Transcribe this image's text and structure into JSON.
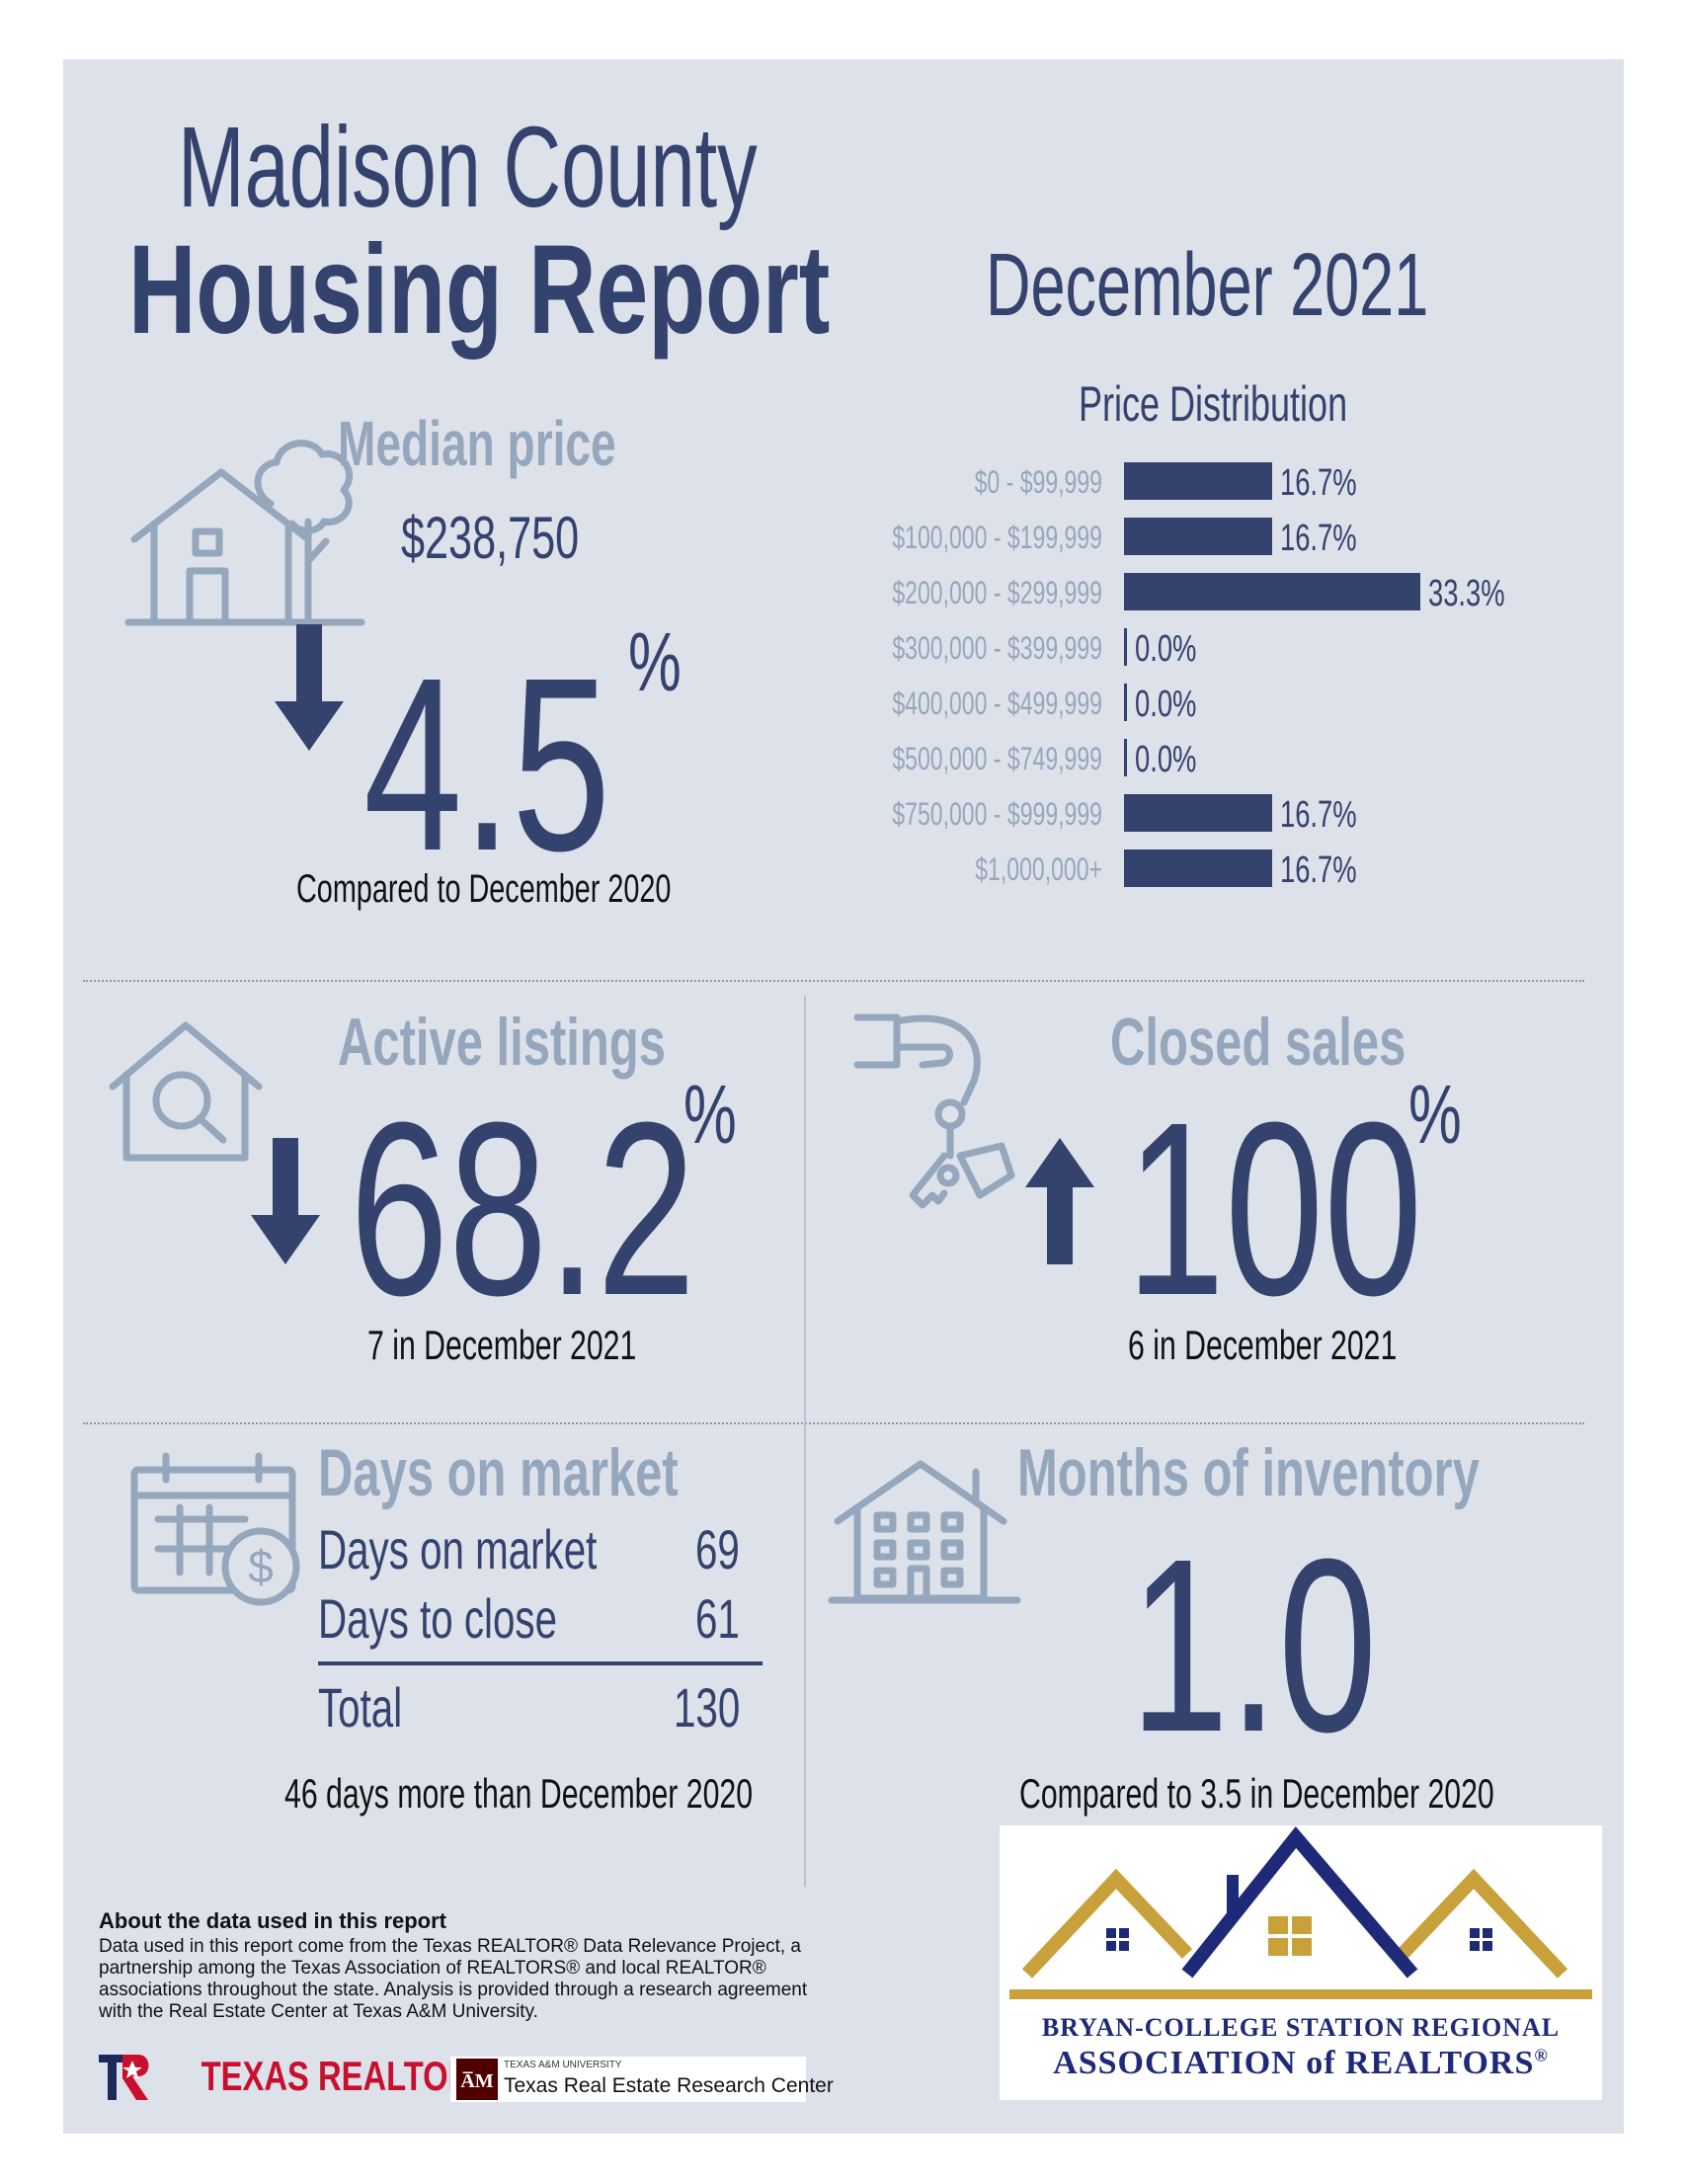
{
  "header": {
    "title_line1": "Madison County",
    "title_line2": "Housing Report",
    "date": "December 2021"
  },
  "median_price": {
    "label": "Median price",
    "value": "$238,750",
    "direction": "down",
    "change": "4.5",
    "percent_symbol": "%",
    "comparison": "Compared to December 2020"
  },
  "price_distribution": {
    "title": "Price Distribution",
    "chart_data": {
      "type": "bar",
      "orientation": "horizontal",
      "title": "Price Distribution",
      "categories": [
        "$0 - $99,999",
        "$100,000 - $199,999",
        "$200,000 - $299,999",
        "$300,000 - $399,999",
        "$400,000 - $499,999",
        "$500,000 - $749,999",
        "$750,000 - $999,999",
        "$1,000,000+"
      ],
      "values": [
        16.7,
        16.7,
        33.3,
        0.0,
        0.0,
        0.0,
        16.7,
        16.7
      ],
      "value_labels": [
        "16.7%",
        "16.7%",
        "33.3%",
        "0.0%",
        "0.0%",
        "0.0%",
        "16.7%",
        "16.7%"
      ],
      "bar_color": "#34426e"
    }
  },
  "active_listings": {
    "label": "Active listings",
    "direction": "down",
    "change": "68.2",
    "percent_symbol": "%",
    "detail": "7 in December 2021"
  },
  "closed_sales": {
    "label": "Closed sales",
    "direction": "up",
    "change": "100",
    "percent_symbol": "%",
    "detail": "6 in December 2021"
  },
  "days_on_market": {
    "label": "Days on market",
    "rows": [
      {
        "name": "Days on market",
        "value": "69"
      },
      {
        "name": "Days to close",
        "value": "61"
      }
    ],
    "total": {
      "name": "Total",
      "value": "130"
    },
    "comparison": "46 days more than December 2020"
  },
  "months_inventory": {
    "label": "Months of inventory",
    "value": "1.0",
    "comparison": "Compared to 3.5 in December 2020"
  },
  "footer": {
    "about_title": "About the data used in this report",
    "about_body": "Data used in this report come from the Texas REALTOR® Data Relevance Project, a partnership among the Texas Association of REALTORS® and local REALTOR® associations throughout the state. Analysis is provided through a research agreement with the Real Estate Center at Texas A&M University.",
    "texas_realtors": "TEXAS REALTORS",
    "am_small": "TEXAS A&M UNIVERSITY",
    "am_name": "Texas Real Estate Research Center"
  },
  "bcs_logo": {
    "line1": "BRYAN-COLLEGE STATION REGIONAL",
    "line2": "ASSOCIATION of REALTORS",
    "mark": "®"
  },
  "colors": {
    "navy": "#34426e",
    "grey": "#95a7bd",
    "panel": "#dde1e9",
    "gold": "#c9a13b"
  }
}
